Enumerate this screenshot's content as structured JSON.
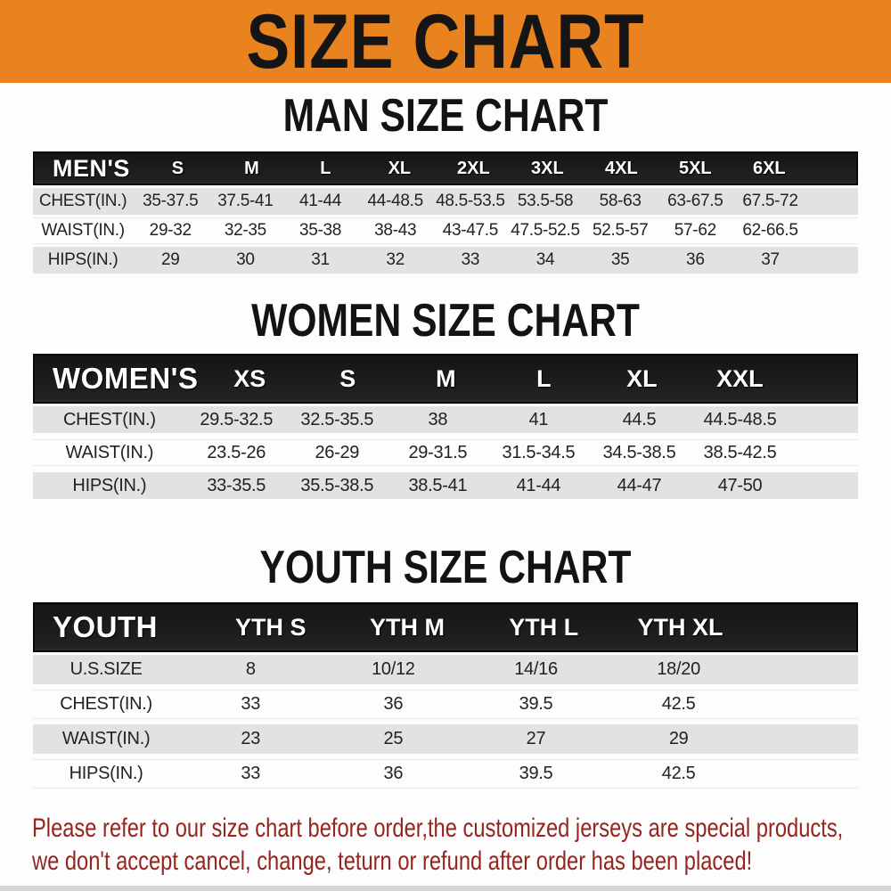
{
  "banner": {
    "title": "SIZE CHART",
    "bg_color": "#E8831F",
    "text_color": "#151515"
  },
  "chart_data": [
    {
      "type": "table",
      "title": "MAN SIZE CHART",
      "header_label": "MEN'S",
      "columns": [
        "S",
        "M",
        "L",
        "XL",
        "2XL",
        "3XL",
        "4XL",
        "5XL",
        "6XL"
      ],
      "rows": [
        {
          "label": "CHEST(IN.)",
          "values": [
            "35-37.5",
            "37.5-41",
            "41-44",
            "44-48.5",
            "48.5-53.5",
            "53.5-58",
            "58-63",
            "63-67.5",
            "67.5-72"
          ]
        },
        {
          "label": "WAIST(IN.)",
          "values": [
            "29-32",
            "32-35",
            "35-38",
            "38-43",
            "43-47.5",
            "47.5-52.5",
            "52.5-57",
            "57-62",
            "62-66.5"
          ]
        },
        {
          "label": "HIPS(IN.)",
          "values": [
            "29",
            "30",
            "31",
            "32",
            "33",
            "34",
            "35",
            "36",
            "37"
          ]
        }
      ]
    },
    {
      "type": "table",
      "title": "WOMEN SIZE CHART",
      "header_label": "WOMEN'S",
      "columns": [
        "XS",
        "S",
        "M",
        "L",
        "XL",
        "XXL"
      ],
      "rows": [
        {
          "label": "CHEST(IN.)",
          "values": [
            "29.5-32.5",
            "32.5-35.5",
            "38",
            "41",
            "44.5",
            "44.5-48.5"
          ]
        },
        {
          "label": "WAIST(IN.)",
          "values": [
            "23.5-26",
            "26-29",
            "29-31.5",
            "31.5-34.5",
            "34.5-38.5",
            "38.5-42.5"
          ]
        },
        {
          "label": "HIPS(IN.)",
          "values": [
            "33-35.5",
            "35.5-38.5",
            "38.5-41",
            "41-44",
            "44-47",
            "47-50"
          ]
        }
      ]
    },
    {
      "type": "table",
      "title": "YOUTH SIZE CHART",
      "header_label": "YOUTH",
      "columns": [
        "YTH S",
        "YTH M",
        "YTH L",
        "YTH XL"
      ],
      "rows": [
        {
          "label": "U.S.SIZE",
          "values": [
            "8",
            "10/12",
            "14/16",
            "18/20"
          ]
        },
        {
          "label": "CHEST(IN.)",
          "values": [
            "33",
            "36",
            "39.5",
            "42.5"
          ]
        },
        {
          "label": "WAIST(IN.)",
          "values": [
            "23",
            "25",
            "27",
            "29"
          ]
        },
        {
          "label": "HIPS(IN.)",
          "values": [
            "33",
            "36",
            "39.5",
            "42.5"
          ]
        }
      ]
    }
  ],
  "footer": {
    "lines": [
      "Please refer to our size chart before order,the customized jerseys are special products,",
      "we don't accept cancel, change, teturn or refund after order has been placed!"
    ],
    "text_color": "#96241E"
  },
  "colors": {
    "header_bar": "#1A1A1A",
    "row_stripe": "#E2E2E2",
    "row_white": "#FDFDFD",
    "bottom_strip": "#D6D6D6"
  }
}
